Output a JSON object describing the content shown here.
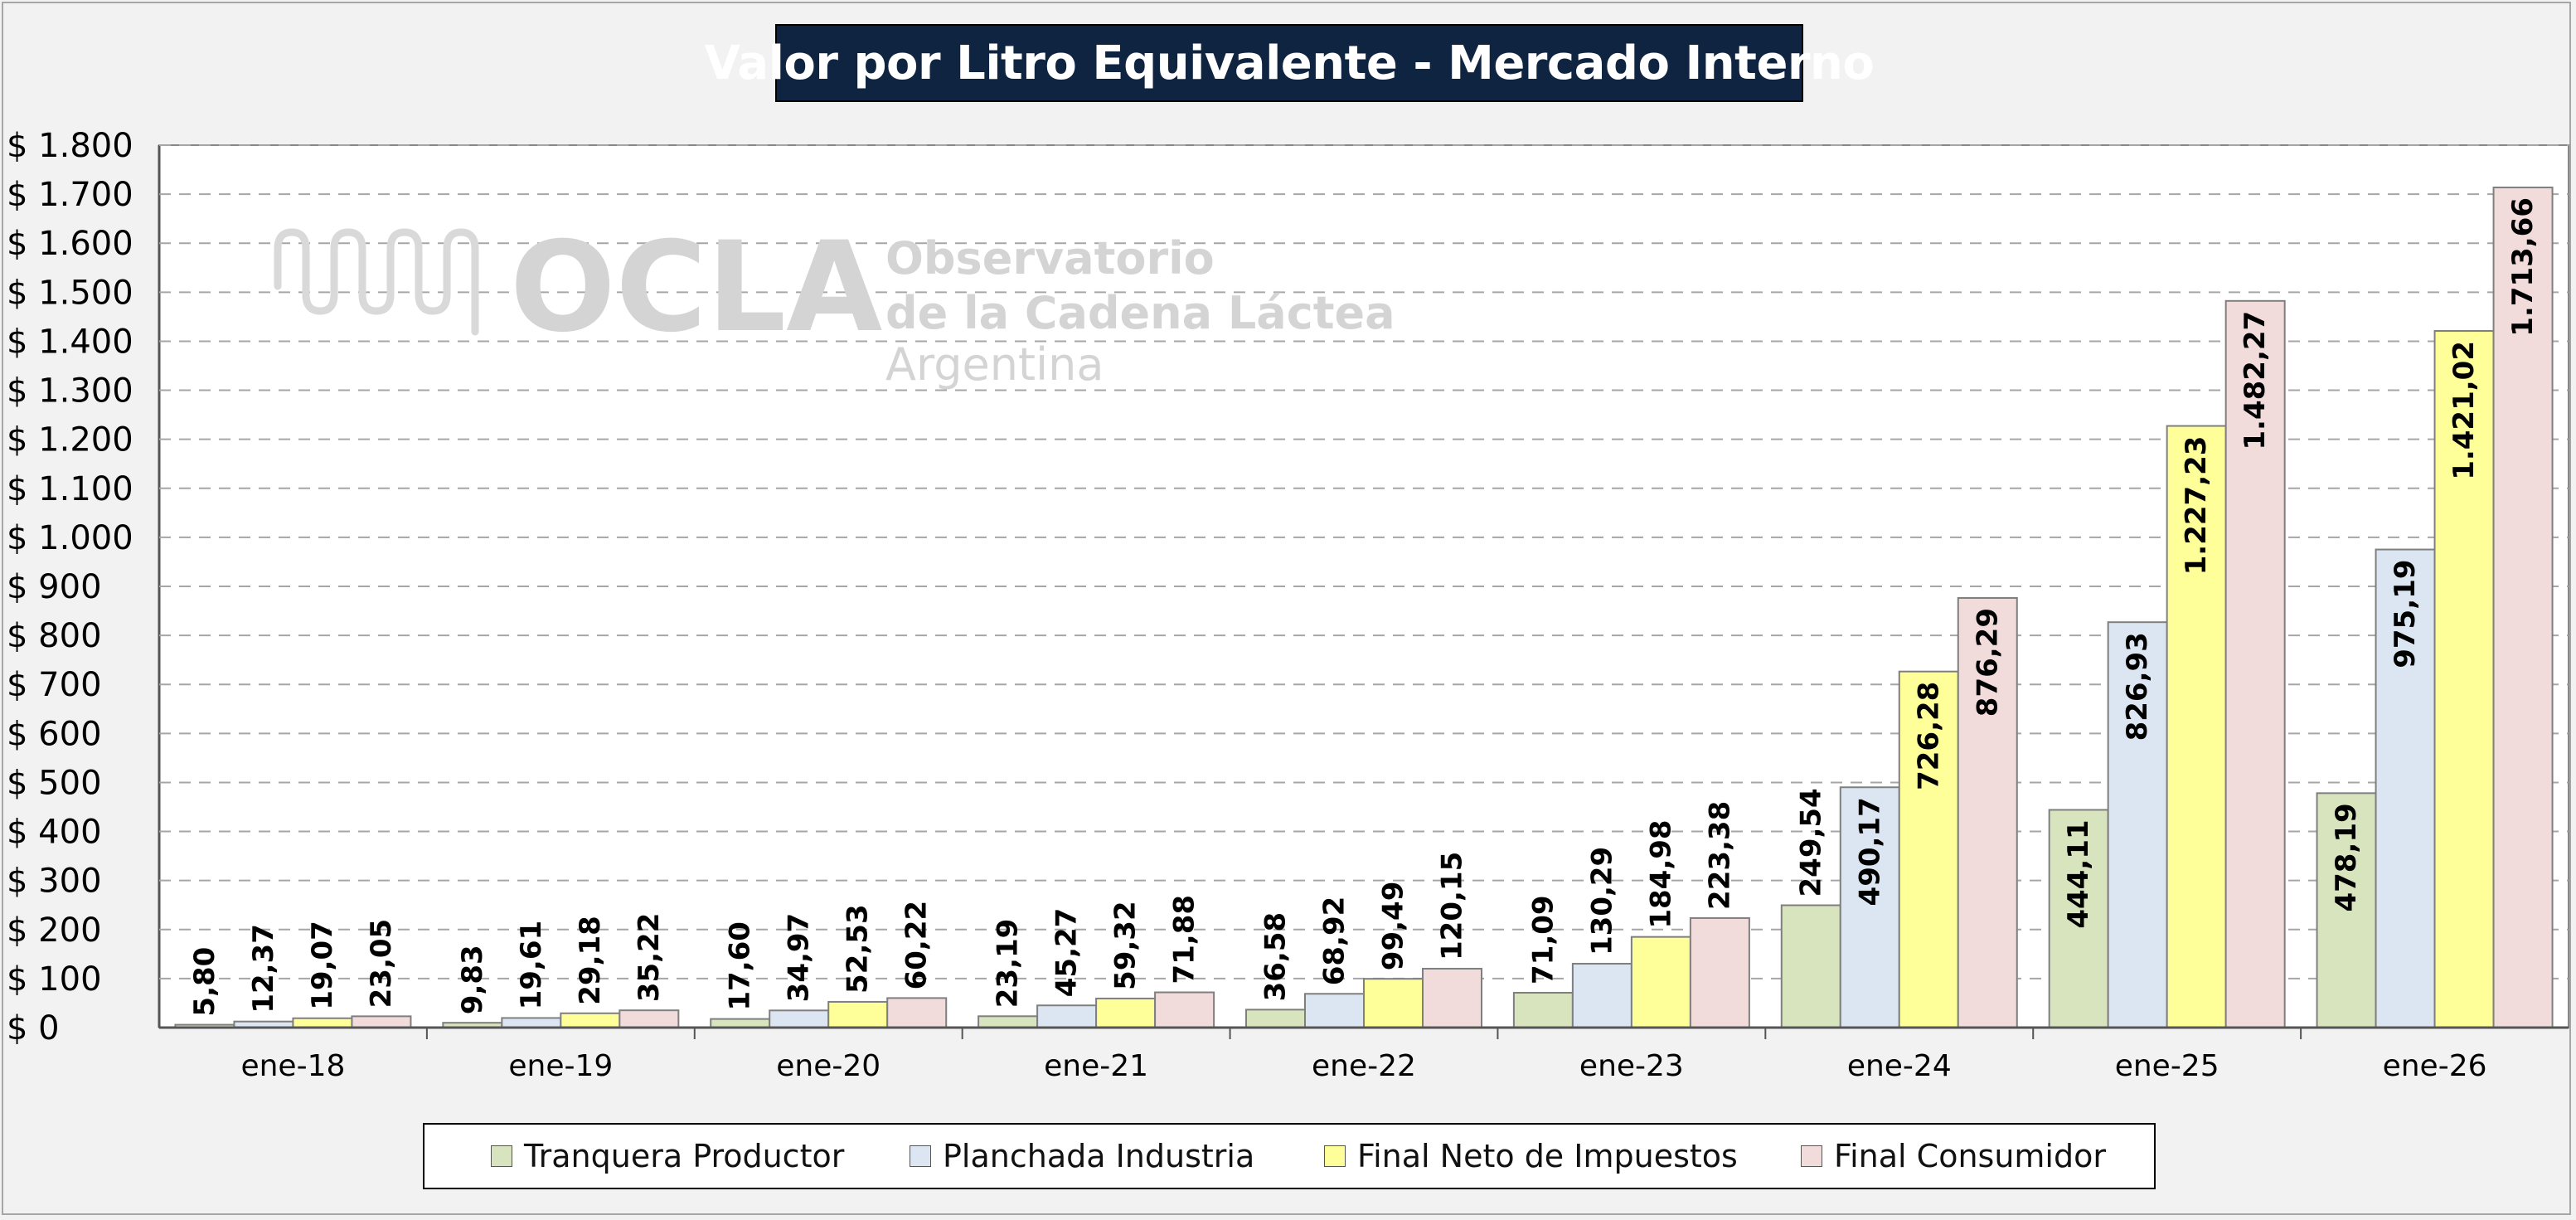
{
  "chart_data": {
    "type": "bar",
    "title": "Valor por Litro Equivalente - Mercado Interno",
    "categories": [
      "ene-18",
      "ene-19",
      "ene-20",
      "ene-21",
      "ene-22",
      "ene-23",
      "ene-24",
      "ene-25",
      "ene-26"
    ],
    "series": [
      {
        "name": "Tranquera Productor",
        "color": "#d7e4bd",
        "values": [
          5.8,
          9.83,
          17.6,
          23.19,
          36.58,
          71.09,
          249.54,
          444.11,
          478.19
        ],
        "labels": [
          "5,80",
          "9,83",
          "17,60",
          "23,19",
          "36,58",
          "71,09",
          "249,54",
          "444,11",
          "478,19"
        ]
      },
      {
        "name": "Planchada Industria",
        "color": "#dce6f2",
        "values": [
          12.37,
          19.61,
          34.97,
          45.27,
          68.92,
          130.29,
          490.17,
          826.93,
          975.19
        ],
        "labels": [
          "12,37",
          "19,61",
          "34,97",
          "45,27",
          "68,92",
          "130,29",
          "490,17",
          "826,93",
          "975,19"
        ]
      },
      {
        "name": "Final Neto de Impuestos",
        "color": "#ffff99",
        "values": [
          19.07,
          29.18,
          52.53,
          59.32,
          99.49,
          184.98,
          726.28,
          1227.23,
          1421.02
        ],
        "labels": [
          "19,07",
          "29,18",
          "52,53",
          "59,32",
          "99,49",
          "184,98",
          "726,28",
          "1.227,23",
          "1.421,02"
        ]
      },
      {
        "name": "Final Consumidor",
        "color": "#f2dcdb",
        "values": [
          23.05,
          35.22,
          60.22,
          71.88,
          120.15,
          223.38,
          876.29,
          1482.27,
          1713.66
        ],
        "labels": [
          "23,05",
          "35,22",
          "60,22",
          "71,88",
          "120,15",
          "223,38",
          "876,29",
          "1.482,27",
          "1.713,66"
        ]
      }
    ],
    "ylim": [
      0,
      1800
    ],
    "ytick_values": [
      0,
      100,
      200,
      300,
      400,
      500,
      600,
      700,
      800,
      900,
      1000,
      1100,
      1200,
      1300,
      1400,
      1500,
      1600,
      1700,
      1800
    ],
    "ytick_labels": [
      "$ 0",
      "$ 100",
      "$ 200",
      "$ 300",
      "$ 400",
      "$ 500",
      "$ 600",
      "$ 700",
      "$ 800",
      "$ 900",
      "$ 1.000",
      "$ 1.100",
      "$ 1.200",
      "$ 1.300",
      "$ 1.400",
      "$ 1.500",
      "$ 1.600",
      "$ 1.700",
      "$ 1.800"
    ],
    "grid": true,
    "legend_position": "bottom",
    "xlabel": "",
    "ylabel": ""
  },
  "watermark": {
    "logo_text": "OCLA",
    "line1": "Observatorio",
    "line2": "de la Cadena Láctea",
    "line3": "Argentina"
  }
}
